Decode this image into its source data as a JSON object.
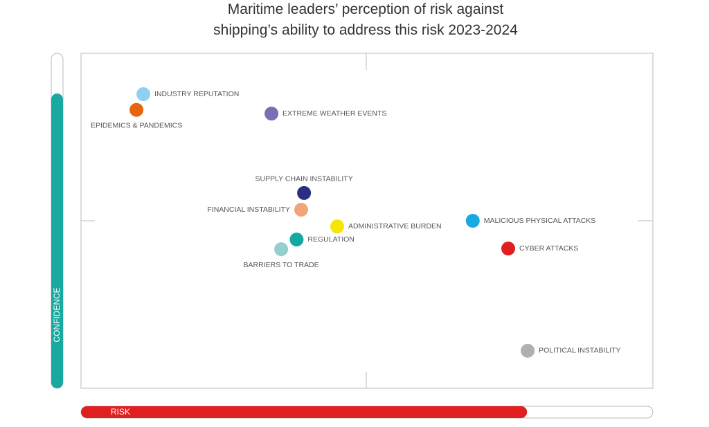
{
  "chart_data": {
    "type": "scatter",
    "title": [
      "Maritime leaders’ perception of risk against",
      "shipping’s ability to address this risk 2023-2024"
    ],
    "xlabel": "RISK",
    "ylabel": "CONFIDENCE",
    "xlim": [
      0,
      100
    ],
    "ylim": [
      0,
      100
    ],
    "x_gauge": {
      "value": 78,
      "color": "#e02020"
    },
    "y_gauge": {
      "value": 88,
      "color": "#1aa9a0"
    },
    "series": [
      {
        "name": "INDUSTRY REPUTATION",
        "color": "#8fd0f0",
        "x": [
          10.9
        ],
        "values": [
          87.8
        ]
      },
      {
        "name": "EPIDEMICS & PANDEMICS",
        "color": "#e8650f",
        "x": [
          9.7
        ],
        "values": [
          83.1
        ]
      },
      {
        "name": "EXTREME WEATHER EVENTS",
        "color": "#7a6fb5",
        "x": [
          33.3
        ],
        "values": [
          82.0
        ]
      },
      {
        "name": "SUPPLY CHAIN INSTABILITY",
        "color": "#2a2f85",
        "x": [
          39.0
        ],
        "values": [
          58.3
        ]
      },
      {
        "name": "FINANCIAL INSTABILITY",
        "color": "#f2a57a",
        "x": [
          38.5
        ],
        "values": [
          53.3
        ]
      },
      {
        "name": "ADMINISTRATIVE BURDEN",
        "color": "#f5e500",
        "x": [
          44.8
        ],
        "values": [
          48.3
        ]
      },
      {
        "name": "REGULATION",
        "color": "#13a9a0",
        "x": [
          37.7
        ],
        "values": [
          44.4
        ]
      },
      {
        "name": "BARRIERS TO TRADE",
        "color": "#93cfcc",
        "x": [
          35.0
        ],
        "values": [
          41.5
        ]
      },
      {
        "name": "MALICIOUS PHYSICAL ATTACKS",
        "color": "#1aa8e0",
        "x": [
          68.5
        ],
        "values": [
          50.0
        ]
      },
      {
        "name": "CYBER ATTACKS",
        "color": "#e02020",
        "x": [
          74.7
        ],
        "values": [
          41.7
        ]
      },
      {
        "name": "POLITICAL INSTABILITY",
        "color": "#b0b0b0",
        "x": [
          78.1
        ],
        "values": [
          11.2
        ]
      }
    ]
  }
}
